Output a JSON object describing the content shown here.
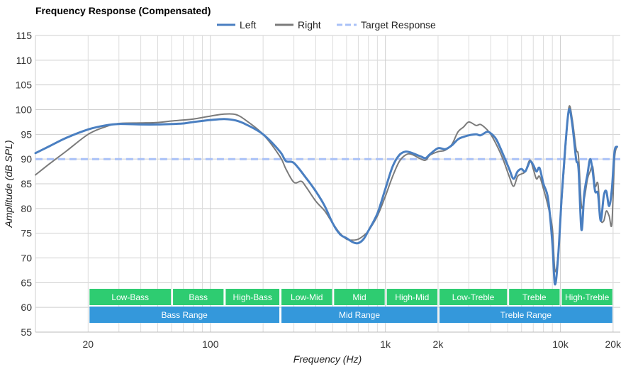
{
  "chart_data": {
    "type": "line",
    "title": "Frequency Response (Compensated)",
    "xlabel": "Frequency (Hz)",
    "ylabel": "Amplitude (dB SPL)",
    "x_scale": "log",
    "xlim": [
      10,
      22000
    ],
    "ylim": [
      55,
      115
    ],
    "grid": true,
    "legend_position": "top-center",
    "x_ticks": [
      {
        "value": 20,
        "label": "20"
      },
      {
        "value": 100,
        "label": "100"
      },
      {
        "value": 1000,
        "label": "1k"
      },
      {
        "value": 2000,
        "label": "2k"
      },
      {
        "value": 10000,
        "label": "10k"
      },
      {
        "value": 20000,
        "label": "20k"
      }
    ],
    "y_ticks": [
      55,
      60,
      65,
      70,
      75,
      80,
      85,
      90,
      95,
      100,
      105,
      110,
      115
    ],
    "series": [
      {
        "name": "Left",
        "color": "#4a7fc1",
        "style": "solid",
        "points": [
          [
            10,
            91.2
          ],
          [
            12,
            92.6
          ],
          [
            15,
            94.3
          ],
          [
            20,
            96.0
          ],
          [
            25,
            96.8
          ],
          [
            30,
            97.1
          ],
          [
            40,
            97.0
          ],
          [
            50,
            97.0
          ],
          [
            60,
            97.1
          ],
          [
            70,
            97.2
          ],
          [
            80,
            97.5
          ],
          [
            100,
            97.9
          ],
          [
            120,
            98.1
          ],
          [
            140,
            97.8
          ],
          [
            160,
            97.0
          ],
          [
            200,
            95.0
          ],
          [
            250,
            91.5
          ],
          [
            270,
            89.6
          ],
          [
            300,
            89.2
          ],
          [
            350,
            86.3
          ],
          [
            400,
            83.5
          ],
          [
            450,
            80.5
          ],
          [
            500,
            77.0
          ],
          [
            550,
            74.8
          ],
          [
            600,
            74.0
          ],
          [
            650,
            73.2
          ],
          [
            700,
            73.0
          ],
          [
            750,
            73.8
          ],
          [
            800,
            75.5
          ],
          [
            900,
            79.0
          ],
          [
            1000,
            84.0
          ],
          [
            1100,
            88.5
          ],
          [
            1200,
            90.8
          ],
          [
            1300,
            91.5
          ],
          [
            1400,
            91.3
          ],
          [
            1600,
            90.5
          ],
          [
            1700,
            90.2
          ],
          [
            1800,
            91.0
          ],
          [
            2000,
            92.2
          ],
          [
            2200,
            92.0
          ],
          [
            2400,
            92.8
          ],
          [
            2600,
            94.0
          ],
          [
            2800,
            94.5
          ],
          [
            3000,
            94.8
          ],
          [
            3300,
            95.0
          ],
          [
            3500,
            94.8
          ],
          [
            3800,
            95.5
          ],
          [
            4000,
            95.2
          ],
          [
            4300,
            94.0
          ],
          [
            4700,
            91.0
          ],
          [
            5100,
            88.0
          ],
          [
            5400,
            86.0
          ],
          [
            5700,
            87.5
          ],
          [
            6000,
            88.0
          ],
          [
            6300,
            87.5
          ],
          [
            6700,
            89.5
          ],
          [
            7000,
            88.8
          ],
          [
            7300,
            87.5
          ],
          [
            7600,
            88.2
          ],
          [
            8000,
            85.0
          ],
          [
            8500,
            82.0
          ],
          [
            9000,
            73.0
          ],
          [
            9300,
            64.7
          ],
          [
            9700,
            70.0
          ],
          [
            10200,
            83.0
          ],
          [
            10700,
            93.0
          ],
          [
            11200,
            100.0
          ],
          [
            11700,
            97.0
          ],
          [
            12300,
            90.0
          ],
          [
            12700,
            88.0
          ],
          [
            13200,
            75.7
          ],
          [
            13700,
            83.0
          ],
          [
            14300,
            87.0
          ],
          [
            14800,
            90.0
          ],
          [
            15300,
            87.5
          ],
          [
            15800,
            83.5
          ],
          [
            16400,
            83.0
          ],
          [
            17000,
            77.5
          ],
          [
            17700,
            82.5
          ],
          [
            18300,
            83.5
          ],
          [
            19000,
            80.5
          ],
          [
            19700,
            84.0
          ],
          [
            20400,
            91.5
          ],
          [
            21100,
            92.5
          ]
        ]
      },
      {
        "name": "Right",
        "color": "#7b7b7b",
        "style": "solid",
        "points": [
          [
            10,
            86.8
          ],
          [
            12,
            89.0
          ],
          [
            15,
            91.6
          ],
          [
            20,
            95.0
          ],
          [
            25,
            96.5
          ],
          [
            30,
            97.2
          ],
          [
            40,
            97.3
          ],
          [
            50,
            97.4
          ],
          [
            60,
            97.7
          ],
          [
            70,
            97.9
          ],
          [
            80,
            98.1
          ],
          [
            100,
            98.7
          ],
          [
            120,
            99.1
          ],
          [
            140,
            99.0
          ],
          [
            160,
            97.8
          ],
          [
            200,
            95.0
          ],
          [
            250,
            90.5
          ],
          [
            270,
            88.0
          ],
          [
            300,
            85.3
          ],
          [
            330,
            85.5
          ],
          [
            350,
            84.5
          ],
          [
            400,
            81.5
          ],
          [
            450,
            79.5
          ],
          [
            500,
            77.0
          ],
          [
            550,
            75.0
          ],
          [
            600,
            73.8
          ],
          [
            650,
            73.6
          ],
          [
            700,
            73.8
          ],
          [
            750,
            74.5
          ],
          [
            800,
            75.5
          ],
          [
            900,
            78.5
          ],
          [
            1000,
            82.5
          ],
          [
            1100,
            86.5
          ],
          [
            1200,
            89.5
          ],
          [
            1300,
            90.8
          ],
          [
            1400,
            91.0
          ],
          [
            1600,
            90.0
          ],
          [
            1700,
            89.8
          ],
          [
            1800,
            90.8
          ],
          [
            2000,
            91.5
          ],
          [
            2200,
            91.8
          ],
          [
            2400,
            93.0
          ],
          [
            2600,
            95.5
          ],
          [
            2800,
            96.5
          ],
          [
            3000,
            97.5
          ],
          [
            3300,
            96.8
          ],
          [
            3500,
            97.0
          ],
          [
            3800,
            96.0
          ],
          [
            4000,
            95.0
          ],
          [
            4300,
            93.0
          ],
          [
            4700,
            90.0
          ],
          [
            5100,
            86.5
          ],
          [
            5400,
            84.5
          ],
          [
            5700,
            86.5
          ],
          [
            6000,
            87.0
          ],
          [
            6300,
            87.5
          ],
          [
            6700,
            89.8
          ],
          [
            7000,
            88.0
          ],
          [
            7300,
            86.0
          ],
          [
            7600,
            86.5
          ],
          [
            8000,
            84.0
          ],
          [
            8500,
            80.5
          ],
          [
            9000,
            76.0
          ],
          [
            9300,
            67.5
          ],
          [
            9700,
            70.5
          ],
          [
            10200,
            82.0
          ],
          [
            10700,
            92.0
          ],
          [
            11200,
            100.5
          ],
          [
            11700,
            98.0
          ],
          [
            12300,
            92.0
          ],
          [
            12700,
            90.5
          ],
          [
            13200,
            80.5
          ],
          [
            13700,
            82.0
          ],
          [
            14300,
            86.0
          ],
          [
            14800,
            87.5
          ],
          [
            15300,
            88.5
          ],
          [
            15800,
            84.5
          ],
          [
            16400,
            85.0
          ],
          [
            17000,
            78.0
          ],
          [
            17700,
            77.5
          ],
          [
            18300,
            79.5
          ],
          [
            19000,
            78.5
          ],
          [
            19700,
            77.0
          ],
          [
            20400,
            90.0
          ],
          [
            21100,
            92.5
          ]
        ]
      },
      {
        "name": "Target Response",
        "color": "#a9c1f7",
        "style": "dashed",
        "points": [
          [
            10,
            90
          ],
          [
            22000,
            90
          ]
        ]
      }
    ],
    "bands": [
      {
        "label": "Low-Bass",
        "from": 20,
        "to": 60,
        "row": 1
      },
      {
        "label": "Bass",
        "from": 60,
        "to": 120,
        "row": 1
      },
      {
        "label": "High-Bass",
        "from": 120,
        "to": 250,
        "row": 1
      },
      {
        "label": "Low-Mid",
        "from": 250,
        "to": 500,
        "row": 1
      },
      {
        "label": "Mid",
        "from": 500,
        "to": 1000,
        "row": 1
      },
      {
        "label": "High-Mid",
        "from": 1000,
        "to": 2000,
        "row": 1
      },
      {
        "label": "Low-Treble",
        "from": 2000,
        "to": 5000,
        "row": 1
      },
      {
        "label": "Treble",
        "from": 5000,
        "to": 10000,
        "row": 1
      },
      {
        "label": "High-Treble",
        "from": 10000,
        "to": 20000,
        "row": 1
      },
      {
        "label": "Bass Range",
        "from": 20,
        "to": 250,
        "row": 2
      },
      {
        "label": "Mid Range",
        "from": 250,
        "to": 2000,
        "row": 2
      },
      {
        "label": "Treble Range",
        "from": 2000,
        "to": 20000,
        "row": 2
      }
    ],
    "band_colors": {
      "row1": "#2ecc71",
      "row2": "#3498db"
    }
  }
}
